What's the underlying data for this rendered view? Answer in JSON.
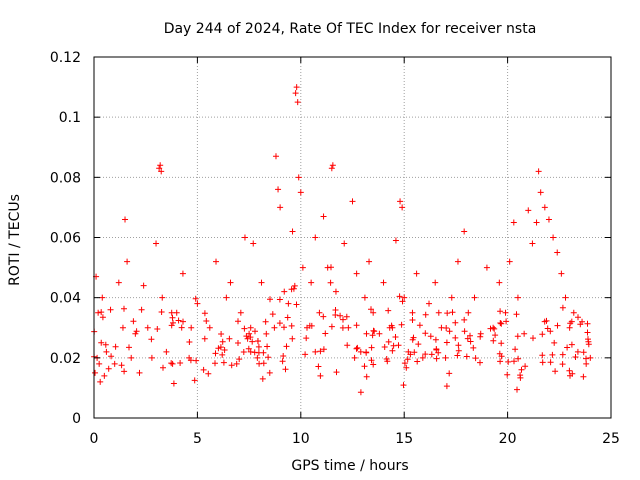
{
  "chart_data": {
    "type": "scatter",
    "title": "Day 244 of 2024, Rate Of TEC Index for receiver nsta",
    "xlabel": "GPS time / hours",
    "ylabel": "ROTI / TECUs",
    "xlim": [
      0,
      25
    ],
    "ylim": [
      0,
      0.12
    ],
    "x_ticks": [
      0,
      5,
      10,
      15,
      20,
      25
    ],
    "x_tick_labels": [
      "0",
      "5",
      "10",
      "15",
      "20",
      "25"
    ],
    "y_ticks": [
      0,
      0.02,
      0.04,
      0.06,
      0.08,
      0.1,
      0.12
    ],
    "y_tick_labels": [
      "0",
      "0.02",
      "0.04",
      "0.06",
      "0.08",
      "0.1",
      "0.12"
    ],
    "grid": true,
    "marker": "+",
    "series": [
      {
        "name": "ROTI",
        "color": "#ff0000",
        "x": [
          0.05,
          0.1,
          0.15,
          0.2,
          0.25,
          0.3,
          0.35,
          0.4,
          0.5,
          0.6,
          0.8,
          1.0,
          1.2,
          1.4,
          1.5,
          1.6,
          1.8,
          2.0,
          2.2,
          2.4,
          2.6,
          2.8,
          3.0,
          3.15,
          3.2,
          3.25,
          3.3,
          3.5,
          3.8,
          4.0,
          4.3,
          4.6,
          4.7,
          5.0,
          5.3,
          5.6,
          5.9,
          6.2,
          6.4,
          6.6,
          6.9,
          7.1,
          7.3,
          7.5,
          7.7,
          7.9,
          8.1,
          8.3,
          8.5,
          8.8,
          8.9,
          9.0,
          9.2,
          9.4,
          9.6,
          9.75,
          9.8,
          9.85,
          9.9,
          10.0,
          10.1,
          10.3,
          10.5,
          10.7,
          10.9,
          11.1,
          11.3,
          11.5,
          11.55,
          11.7,
          11.9,
          12.1,
          12.3,
          12.5,
          12.7,
          12.9,
          13.1,
          13.3,
          13.5,
          13.8,
          14.0,
          14.3,
          14.6,
          14.8,
          14.9,
          15.0,
          15.2,
          15.4,
          15.6,
          15.9,
          16.2,
          16.5,
          16.8,
          17.0,
          17.3,
          17.6,
          17.9,
          18.1,
          18.4,
          18.7,
          19.0,
          19.3,
          19.6,
          19.9,
          20.1,
          20.3,
          20.5,
          20.8,
          21.0,
          21.2,
          21.4,
          21.5,
          21.6,
          21.8,
          22.0,
          22.2,
          22.4,
          22.6,
          22.8,
          23.0,
          23.2,
          23.4,
          23.6,
          23.8,
          24.0
        ],
        "y": [
          0.015,
          0.047,
          0.02,
          0.035,
          0.018,
          0.012,
          0.025,
          0.04,
          0.014,
          0.022,
          0.036,
          0.018,
          0.045,
          0.03,
          0.066,
          0.052,
          0.02,
          0.028,
          0.015,
          0.044,
          0.03,
          0.02,
          0.058,
          0.083,
          0.084,
          0.082,
          0.04,
          0.022,
          0.018,
          0.035,
          0.048,
          0.02,
          0.03,
          0.038,
          0.016,
          0.03,
          0.052,
          0.021,
          0.04,
          0.045,
          0.018,
          0.035,
          0.06,
          0.028,
          0.058,
          0.02,
          0.045,
          0.032,
          0.015,
          0.087,
          0.076,
          0.07,
          0.042,
          0.038,
          0.062,
          0.108,
          0.11,
          0.105,
          0.08,
          0.075,
          0.05,
          0.03,
          0.045,
          0.06,
          0.035,
          0.067,
          0.05,
          0.083,
          0.084,
          0.042,
          0.034,
          0.058,
          0.03,
          0.072,
          0.048,
          0.022,
          0.04,
          0.052,
          0.035,
          0.028,
          0.045,
          0.03,
          0.059,
          0.072,
          0.07,
          0.04,
          0.022,
          0.035,
          0.048,
          0.02,
          0.038,
          0.045,
          0.03,
          0.02,
          0.04,
          0.052,
          0.062,
          0.035,
          0.04,
          0.028,
          0.05,
          0.03,
          0.045,
          0.035,
          0.052,
          0.065,
          0.04,
          0.028,
          0.069,
          0.058,
          0.065,
          0.082,
          0.075,
          0.07,
          0.066,
          0.06,
          0.055,
          0.048,
          0.04,
          0.03,
          0.035,
          0.022,
          0.032,
          0.018,
          0.02
        ]
      }
    ]
  }
}
